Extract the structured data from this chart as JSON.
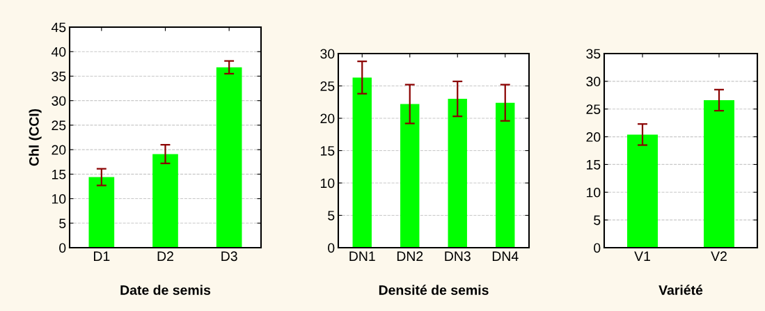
{
  "chart_data": [
    {
      "type": "bar",
      "categories": [
        "D1",
        "D2",
        "D3"
      ],
      "values": [
        14.4,
        19.1,
        36.8
      ],
      "errors": [
        1.7,
        1.9,
        1.3
      ],
      "color": "#00ff00",
      "ylabel": "Chl (CCI)",
      "xlabel": "Date de semis",
      "ylim": [
        0,
        45
      ],
      "yticks": [
        0,
        5,
        10,
        15,
        20,
        25,
        30,
        35,
        40,
        45
      ],
      "grid": "y"
    },
    {
      "type": "bar",
      "categories": [
        "DN1",
        "DN2",
        "DN3",
        "DN4"
      ],
      "values": [
        26.3,
        22.2,
        23.0,
        22.4
      ],
      "errors": [
        2.5,
        3.0,
        2.7,
        2.8
      ],
      "color": "#00ff00",
      "xlabel": "Densité de semis",
      "ylim": [
        0,
        30
      ],
      "yticks": [
        0,
        5,
        10,
        15,
        20,
        25,
        30
      ],
      "grid": "y"
    },
    {
      "type": "bar",
      "categories": [
        "V1",
        "V2"
      ],
      "values": [
        20.4,
        26.6
      ],
      "errors": [
        1.9,
        1.9
      ],
      "color": "#00ff00",
      "xlabel": "Variété",
      "ylim": [
        0,
        35
      ],
      "yticks": [
        0,
        5,
        10,
        15,
        20,
        25,
        30,
        35
      ],
      "grid": "y"
    }
  ]
}
